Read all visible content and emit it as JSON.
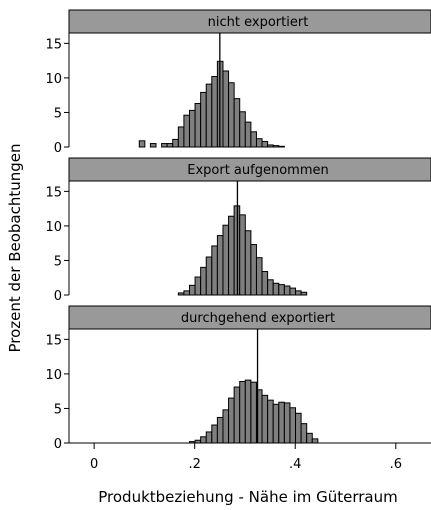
{
  "chart_data": {
    "type": "bar",
    "xlabel": "Produktbeziehung - Nähe im Güterraum",
    "ylabel": "Prozent der Beobachtungen",
    "xlim": [
      -0.05,
      0.67
    ],
    "xticks": [
      "0",
      ".2",
      ".4",
      ".6"
    ],
    "xtick_values": [
      0,
      0.2,
      0.4,
      0.6
    ],
    "ylim": [
      0,
      16.5
    ],
    "yticks": [
      "0",
      "5",
      "10",
      "15"
    ],
    "ytick_values": [
      0,
      5,
      10,
      15
    ],
    "bin_width": 0.0111,
    "bar_color": "#7f7f7f",
    "strip_color": "#999999",
    "panels": [
      {
        "title": "nicht exportiert",
        "mean": 0.25,
        "bins": [
          {
            "x": 0.0953,
            "y": 0.9
          },
          {
            "x": 0.1175,
            "y": 0.5
          },
          {
            "x": 0.1397,
            "y": 0.5
          },
          {
            "x": 0.1508,
            "y": 0.5
          },
          {
            "x": 0.1619,
            "y": 1.1
          },
          {
            "x": 0.173,
            "y": 2.9
          },
          {
            "x": 0.1841,
            "y": 4.6
          },
          {
            "x": 0.1952,
            "y": 5.3
          },
          {
            "x": 0.2063,
            "y": 6.3
          },
          {
            "x": 0.2174,
            "y": 7.9
          },
          {
            "x": 0.2285,
            "y": 9.1
          },
          {
            "x": 0.2396,
            "y": 10.2
          },
          {
            "x": 0.2507,
            "y": 12.4
          },
          {
            "x": 0.2618,
            "y": 11.0
          },
          {
            "x": 0.2729,
            "y": 9.3
          },
          {
            "x": 0.284,
            "y": 7.0
          },
          {
            "x": 0.2951,
            "y": 5.1
          },
          {
            "x": 0.3062,
            "y": 3.6
          },
          {
            "x": 0.3173,
            "y": 2.2
          },
          {
            "x": 0.3284,
            "y": 1.2
          },
          {
            "x": 0.3395,
            "y": 0.8
          },
          {
            "x": 0.3506,
            "y": 0.3
          },
          {
            "x": 0.3617,
            "y": 0.2
          },
          {
            "x": 0.3728,
            "y": 0.1
          }
        ]
      },
      {
        "title": "Export aufgenommen",
        "mean": 0.285,
        "bins": [
          {
            "x": 0.173,
            "y": 0.3
          },
          {
            "x": 0.1841,
            "y": 0.6
          },
          {
            "x": 0.1952,
            "y": 1.4
          },
          {
            "x": 0.2063,
            "y": 2.6
          },
          {
            "x": 0.2174,
            "y": 4.0
          },
          {
            "x": 0.2285,
            "y": 5.5
          },
          {
            "x": 0.2396,
            "y": 7.1
          },
          {
            "x": 0.2507,
            "y": 8.6
          },
          {
            "x": 0.2618,
            "y": 10.1
          },
          {
            "x": 0.2729,
            "y": 11.4
          },
          {
            "x": 0.284,
            "y": 12.9
          },
          {
            "x": 0.2951,
            "y": 11.6
          },
          {
            "x": 0.3062,
            "y": 9.3
          },
          {
            "x": 0.3173,
            "y": 7.3
          },
          {
            "x": 0.3284,
            "y": 5.4
          },
          {
            "x": 0.3395,
            "y": 3.4
          },
          {
            "x": 0.3506,
            "y": 2.2
          },
          {
            "x": 0.3617,
            "y": 1.7
          },
          {
            "x": 0.3728,
            "y": 1.5
          },
          {
            "x": 0.3839,
            "y": 1.3
          },
          {
            "x": 0.395,
            "y": 1.0
          },
          {
            "x": 0.4061,
            "y": 0.6
          },
          {
            "x": 0.4172,
            "y": 0.4
          }
        ]
      },
      {
        "title": "durchgehend exportiert",
        "mean": 0.325,
        "bins": [
          {
            "x": 0.1952,
            "y": 0.2
          },
          {
            "x": 0.2063,
            "y": 0.4
          },
          {
            "x": 0.2174,
            "y": 0.9
          },
          {
            "x": 0.2285,
            "y": 1.6
          },
          {
            "x": 0.2396,
            "y": 2.6
          },
          {
            "x": 0.2507,
            "y": 3.7
          },
          {
            "x": 0.2618,
            "y": 4.8
          },
          {
            "x": 0.2729,
            "y": 6.5
          },
          {
            "x": 0.284,
            "y": 8.1
          },
          {
            "x": 0.2951,
            "y": 8.9
          },
          {
            "x": 0.3062,
            "y": 9.1
          },
          {
            "x": 0.3173,
            "y": 8.8
          },
          {
            "x": 0.3284,
            "y": 7.7
          },
          {
            "x": 0.3395,
            "y": 6.9
          },
          {
            "x": 0.3506,
            "y": 6.2
          },
          {
            "x": 0.3617,
            "y": 5.6
          },
          {
            "x": 0.3728,
            "y": 5.9
          },
          {
            "x": 0.3839,
            "y": 5.8
          },
          {
            "x": 0.395,
            "y": 5.1
          },
          {
            "x": 0.4061,
            "y": 4.3
          },
          {
            "x": 0.4172,
            "y": 2.8
          },
          {
            "x": 0.4283,
            "y": 1.4
          },
          {
            "x": 0.4394,
            "y": 0.6
          }
        ]
      }
    ]
  }
}
